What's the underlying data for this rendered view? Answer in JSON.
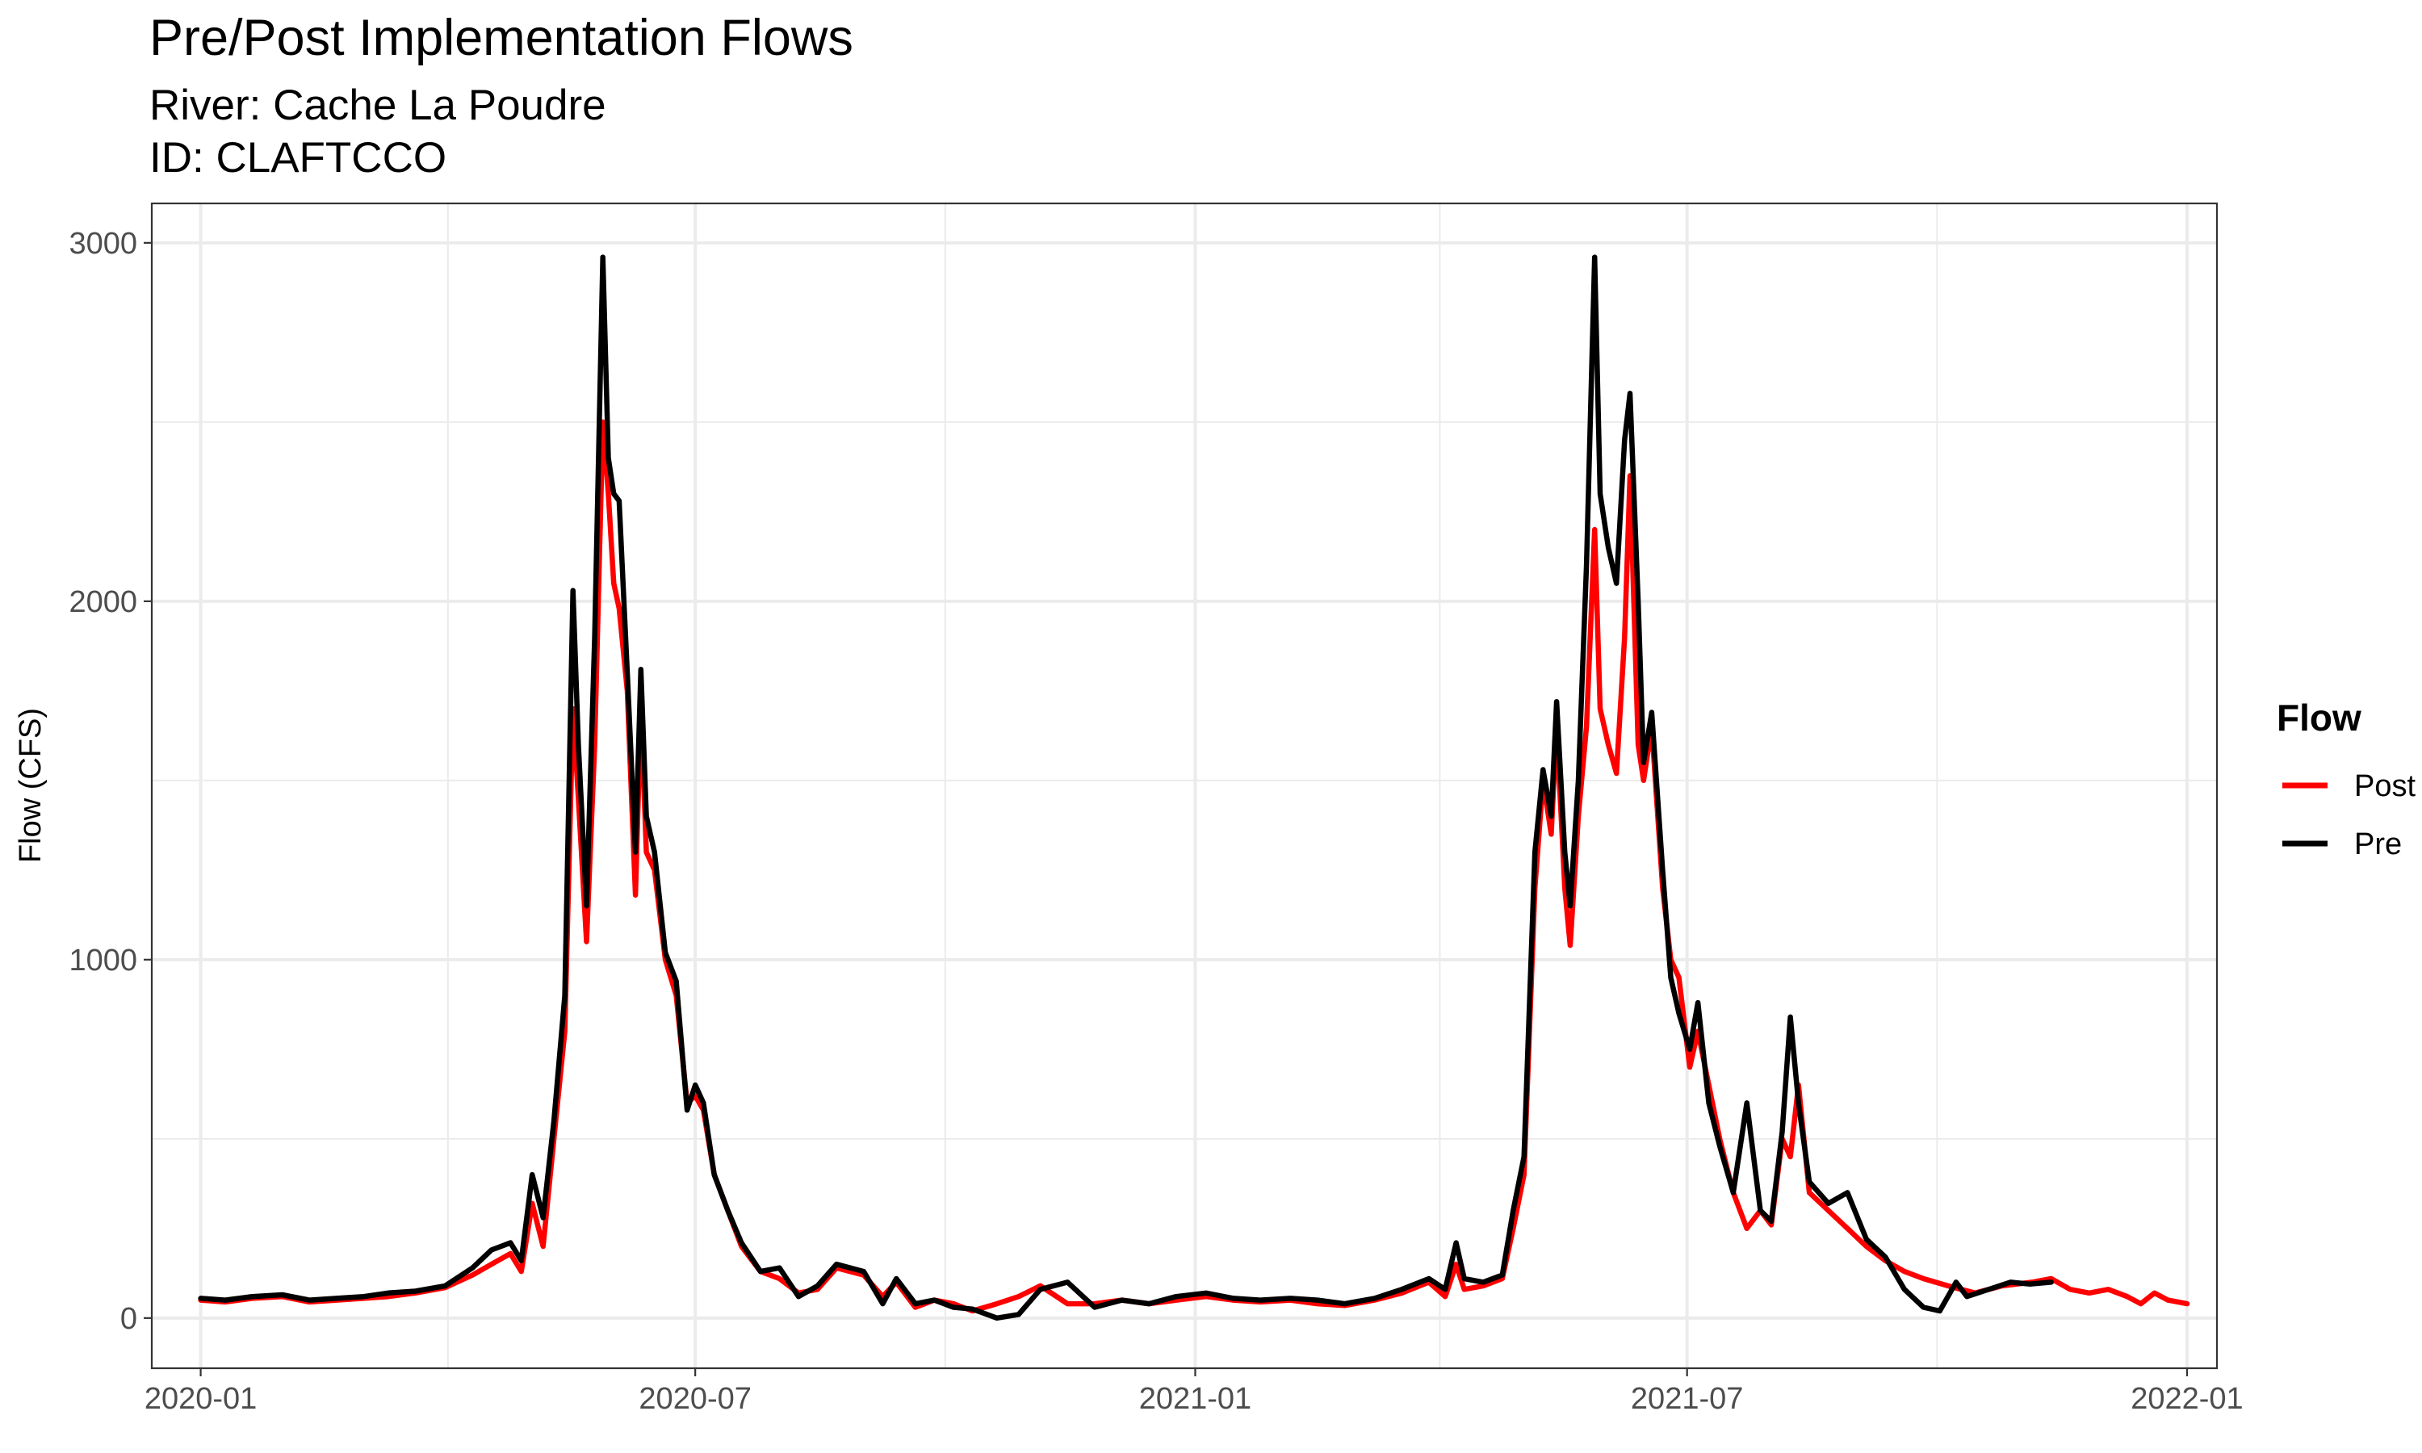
{
  "chart_data": {
    "type": "line",
    "title": "Pre/Post Implementation Flows",
    "subtitle_lines": [
      "River: Cache La Poudre",
      "ID: CLAFTCCO"
    ],
    "xlabel": "",
    "ylabel": "Flow (CFS)",
    "xlim": [
      "2019-12-14",
      "2022-01-12"
    ],
    "ylim": [
      -140,
      3110
    ],
    "y_ticks": [
      0,
      1000,
      2000,
      3000
    ],
    "y_minor_ticks": [
      500,
      1500,
      2500
    ],
    "x_ticks": [
      "2020-01-01",
      "2020-07-01",
      "2021-01-01",
      "2021-07-01",
      "2022-01-01"
    ],
    "x_tick_labels": [
      "2020-01",
      "2020-07",
      "2021-01",
      "2021-07",
      "2022-01"
    ],
    "x_minor_ticks": [
      "2020-04-01",
      "2020-10-01",
      "2021-04-01",
      "2021-10-01"
    ],
    "grid": true,
    "legend": {
      "title": "Flow",
      "placement": "right"
    },
    "series": [
      {
        "name": "Post",
        "color": "#ff0000",
        "points": [
          [
            "2020-01-01",
            50
          ],
          [
            "2020-01-10",
            45
          ],
          [
            "2020-01-20",
            55
          ],
          [
            "2020-01-31",
            60
          ],
          [
            "2020-02-10",
            45
          ],
          [
            "2020-02-20",
            50
          ],
          [
            "2020-03-01",
            55
          ],
          [
            "2020-03-10",
            60
          ],
          [
            "2020-03-20",
            70
          ],
          [
            "2020-03-31",
            85
          ],
          [
            "2020-04-10",
            120
          ],
          [
            "2020-04-17",
            150
          ],
          [
            "2020-04-24",
            180
          ],
          [
            "2020-04-28",
            130
          ],
          [
            "2020-05-02",
            320
          ],
          [
            "2020-05-06",
            200
          ],
          [
            "2020-05-10",
            500
          ],
          [
            "2020-05-14",
            800
          ],
          [
            "2020-05-17",
            1700
          ],
          [
            "2020-05-19",
            1450
          ],
          [
            "2020-05-22",
            1050
          ],
          [
            "2020-05-25",
            1600
          ],
          [
            "2020-05-28",
            2500
          ],
          [
            "2020-05-30",
            2300
          ],
          [
            "2020-06-01",
            2050
          ],
          [
            "2020-06-03",
            1980
          ],
          [
            "2020-06-06",
            1750
          ],
          [
            "2020-06-09",
            1180
          ],
          [
            "2020-06-11",
            1700
          ],
          [
            "2020-06-13",
            1300
          ],
          [
            "2020-06-16",
            1250
          ],
          [
            "2020-06-20",
            1000
          ],
          [
            "2020-06-24",
            900
          ],
          [
            "2020-06-28",
            600
          ],
          [
            "2020-07-01",
            620
          ],
          [
            "2020-07-04",
            580
          ],
          [
            "2020-07-08",
            400
          ],
          [
            "2020-07-13",
            300
          ],
          [
            "2020-07-18",
            200
          ],
          [
            "2020-07-25",
            130
          ],
          [
            "2020-08-01",
            110
          ],
          [
            "2020-08-08",
            70
          ],
          [
            "2020-08-15",
            80
          ],
          [
            "2020-08-22",
            140
          ],
          [
            "2020-09-01",
            120
          ],
          [
            "2020-09-08",
            60
          ],
          [
            "2020-09-13",
            100
          ],
          [
            "2020-09-20",
            30
          ],
          [
            "2020-09-27",
            50
          ],
          [
            "2020-10-04",
            40
          ],
          [
            "2020-10-11",
            20
          ],
          [
            "2020-10-20",
            40
          ],
          [
            "2020-10-28",
            60
          ],
          [
            "2020-11-05",
            90
          ],
          [
            "2020-11-15",
            40
          ],
          [
            "2020-11-25",
            40
          ],
          [
            "2020-12-05",
            50
          ],
          [
            "2020-12-15",
            40
          ],
          [
            "2020-12-25",
            50
          ],
          [
            "2021-01-05",
            60
          ],
          [
            "2021-01-15",
            50
          ],
          [
            "2021-01-25",
            45
          ],
          [
            "2021-02-05",
            50
          ],
          [
            "2021-02-15",
            40
          ],
          [
            "2021-02-25",
            35
          ],
          [
            "2021-03-08",
            50
          ],
          [
            "2021-03-18",
            70
          ],
          [
            "2021-03-28",
            100
          ],
          [
            "2021-04-03",
            60
          ],
          [
            "2021-04-07",
            150
          ],
          [
            "2021-04-10",
            80
          ],
          [
            "2021-04-17",
            90
          ],
          [
            "2021-04-24",
            110
          ],
          [
            "2021-04-28",
            250
          ],
          [
            "2021-05-02",
            400
          ],
          [
            "2021-05-06",
            1200
          ],
          [
            "2021-05-09",
            1500
          ],
          [
            "2021-05-12",
            1350
          ],
          [
            "2021-05-14",
            1650
          ],
          [
            "2021-05-17",
            1200
          ],
          [
            "2021-05-19",
            1040
          ],
          [
            "2021-05-22",
            1400
          ],
          [
            "2021-05-25",
            1650
          ],
          [
            "2021-05-28",
            2200
          ],
          [
            "2021-05-30",
            1700
          ],
          [
            "2021-06-02",
            1600
          ],
          [
            "2021-06-05",
            1520
          ],
          [
            "2021-06-08",
            1900
          ],
          [
            "2021-06-10",
            2350
          ],
          [
            "2021-06-13",
            1600
          ],
          [
            "2021-06-15",
            1500
          ],
          [
            "2021-06-18",
            1650
          ],
          [
            "2021-06-22",
            1200
          ],
          [
            "2021-06-25",
            1000
          ],
          [
            "2021-06-28",
            950
          ],
          [
            "2021-07-02",
            700
          ],
          [
            "2021-07-05",
            800
          ],
          [
            "2021-07-09",
            650
          ],
          [
            "2021-07-13",
            500
          ],
          [
            "2021-07-18",
            350
          ],
          [
            "2021-07-23",
            250
          ],
          [
            "2021-07-28",
            300
          ],
          [
            "2021-08-01",
            260
          ],
          [
            "2021-08-05",
            500
          ],
          [
            "2021-08-08",
            450
          ],
          [
            "2021-08-11",
            650
          ],
          [
            "2021-08-15",
            350
          ],
          [
            "2021-08-22",
            300
          ],
          [
            "2021-08-29",
            250
          ],
          [
            "2021-09-05",
            200
          ],
          [
            "2021-09-12",
            160
          ],
          [
            "2021-09-19",
            130
          ],
          [
            "2021-09-26",
            110
          ],
          [
            "2021-10-05",
            90
          ],
          [
            "2021-10-15",
            70
          ],
          [
            "2021-10-25",
            90
          ],
          [
            "2021-11-05",
            100
          ],
          [
            "2021-11-12",
            110
          ],
          [
            "2021-11-19",
            80
          ],
          [
            "2021-11-26",
            70
          ],
          [
            "2021-12-03",
            80
          ],
          [
            "2021-12-10",
            60
          ],
          [
            "2021-12-15",
            40
          ],
          [
            "2021-12-20",
            70
          ],
          [
            "2021-12-25",
            50
          ],
          [
            "2022-01-01",
            40
          ]
        ]
      },
      {
        "name": "Pre",
        "color": "#000000",
        "points": [
          [
            "2020-01-01",
            55
          ],
          [
            "2020-01-10",
            50
          ],
          [
            "2020-01-20",
            60
          ],
          [
            "2020-01-31",
            65
          ],
          [
            "2020-02-10",
            50
          ],
          [
            "2020-02-20",
            55
          ],
          [
            "2020-03-01",
            60
          ],
          [
            "2020-03-10",
            70
          ],
          [
            "2020-03-20",
            75
          ],
          [
            "2020-03-31",
            90
          ],
          [
            "2020-04-10",
            140
          ],
          [
            "2020-04-17",
            190
          ],
          [
            "2020-04-24",
            210
          ],
          [
            "2020-04-28",
            160
          ],
          [
            "2020-05-02",
            400
          ],
          [
            "2020-05-06",
            280
          ],
          [
            "2020-05-10",
            550
          ],
          [
            "2020-05-14",
            900
          ],
          [
            "2020-05-17",
            2030
          ],
          [
            "2020-05-19",
            1600
          ],
          [
            "2020-05-22",
            1150
          ],
          [
            "2020-05-25",
            1900
          ],
          [
            "2020-05-28",
            2960
          ],
          [
            "2020-05-30",
            2400
          ],
          [
            "2020-06-01",
            2300
          ],
          [
            "2020-06-03",
            2280
          ],
          [
            "2020-06-06",
            1800
          ],
          [
            "2020-06-09",
            1300
          ],
          [
            "2020-06-11",
            1810
          ],
          [
            "2020-06-13",
            1400
          ],
          [
            "2020-06-16",
            1300
          ],
          [
            "2020-06-20",
            1020
          ],
          [
            "2020-06-24",
            940
          ],
          [
            "2020-06-28",
            580
          ],
          [
            "2020-07-01",
            650
          ],
          [
            "2020-07-04",
            600
          ],
          [
            "2020-07-08",
            400
          ],
          [
            "2020-07-13",
            300
          ],
          [
            "2020-07-18",
            210
          ],
          [
            "2020-07-25",
            130
          ],
          [
            "2020-08-01",
            140
          ],
          [
            "2020-08-08",
            60
          ],
          [
            "2020-08-15",
            90
          ],
          [
            "2020-08-22",
            150
          ],
          [
            "2020-09-01",
            130
          ],
          [
            "2020-09-08",
            40
          ],
          [
            "2020-09-13",
            110
          ],
          [
            "2020-09-20",
            40
          ],
          [
            "2020-09-27",
            50
          ],
          [
            "2020-10-04",
            30
          ],
          [
            "2020-10-11",
            25
          ],
          [
            "2020-10-20",
            0
          ],
          [
            "2020-10-28",
            10
          ],
          [
            "2020-11-05",
            80
          ],
          [
            "2020-11-15",
            100
          ],
          [
            "2020-11-25",
            30
          ],
          [
            "2020-12-05",
            50
          ],
          [
            "2020-12-15",
            40
          ],
          [
            "2020-12-25",
            60
          ],
          [
            "2021-01-05",
            70
          ],
          [
            "2021-01-15",
            55
          ],
          [
            "2021-01-25",
            50
          ],
          [
            "2021-02-05",
            55
          ],
          [
            "2021-02-15",
            50
          ],
          [
            "2021-02-25",
            40
          ],
          [
            "2021-03-08",
            55
          ],
          [
            "2021-03-18",
            80
          ],
          [
            "2021-03-28",
            110
          ],
          [
            "2021-04-03",
            80
          ],
          [
            "2021-04-07",
            210
          ],
          [
            "2021-04-10",
            110
          ],
          [
            "2021-04-17",
            100
          ],
          [
            "2021-04-24",
            120
          ],
          [
            "2021-04-28",
            300
          ],
          [
            "2021-05-02",
            450
          ],
          [
            "2021-05-06",
            1300
          ],
          [
            "2021-05-09",
            1530
          ],
          [
            "2021-05-12",
            1400
          ],
          [
            "2021-05-14",
            1720
          ],
          [
            "2021-05-17",
            1300
          ],
          [
            "2021-05-19",
            1150
          ],
          [
            "2021-05-22",
            1500
          ],
          [
            "2021-05-25",
            2100
          ],
          [
            "2021-05-28",
            2960
          ],
          [
            "2021-05-30",
            2300
          ],
          [
            "2021-06-02",
            2150
          ],
          [
            "2021-06-05",
            2050
          ],
          [
            "2021-06-08",
            2450
          ],
          [
            "2021-06-10",
            2580
          ],
          [
            "2021-06-13",
            2000
          ],
          [
            "2021-06-15",
            1550
          ],
          [
            "2021-06-18",
            1690
          ],
          [
            "2021-06-22",
            1250
          ],
          [
            "2021-06-25",
            950
          ],
          [
            "2021-06-28",
            850
          ],
          [
            "2021-07-02",
            750
          ],
          [
            "2021-07-05",
            880
          ],
          [
            "2021-07-09",
            600
          ],
          [
            "2021-07-13",
            480
          ],
          [
            "2021-07-18",
            350
          ],
          [
            "2021-07-23",
            600
          ],
          [
            "2021-07-28",
            300
          ],
          [
            "2021-08-01",
            270
          ],
          [
            "2021-08-05",
            520
          ],
          [
            "2021-08-08",
            840
          ],
          [
            "2021-08-11",
            600
          ],
          [
            "2021-08-15",
            380
          ],
          [
            "2021-08-22",
            320
          ],
          [
            "2021-08-29",
            350
          ],
          [
            "2021-09-05",
            220
          ],
          [
            "2021-09-12",
            170
          ],
          [
            "2021-09-19",
            80
          ],
          [
            "2021-09-26",
            30
          ],
          [
            "2021-10-02",
            20
          ],
          [
            "2021-10-08",
            100
          ],
          [
            "2021-10-12",
            60
          ],
          [
            "2021-10-20",
            80
          ],
          [
            "2021-10-28",
            100
          ],
          [
            "2021-11-04",
            95
          ],
          [
            "2021-11-12",
            100
          ]
        ]
      }
    ]
  }
}
